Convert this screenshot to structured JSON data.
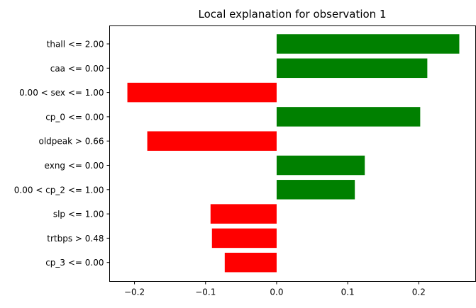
{
  "chart_data": {
    "type": "bar",
    "orientation": "horizontal",
    "title": "Local explanation for observation 1",
    "xlabel": "",
    "ylabel": "",
    "xlim": [
      -0.235,
      0.28
    ],
    "xticks": [
      -0.2,
      -0.1,
      0.0,
      0.1,
      0.2
    ],
    "xtick_labels": [
      "−0.2",
      "−0.1",
      "0.0",
      "0.1",
      "0.2"
    ],
    "categories": [
      "thall <= 2.00",
      "caa <= 0.00",
      "0.00 < sex <= 1.00",
      "cp_0 <= 0.00",
      "oldpeak > 0.66",
      "exng <= 0.00",
      "0.00 < cp_2 <= 1.00",
      "slp <= 1.00",
      "trtbps > 0.48",
      "cp_3 <= 0.00"
    ],
    "values": [
      0.257,
      0.212,
      -0.21,
      0.202,
      -0.182,
      0.124,
      0.11,
      -0.093,
      -0.091,
      -0.073
    ],
    "colors": {
      "positive": "#008000",
      "negative": "#ff0000"
    },
    "grid": false,
    "legend": "none"
  }
}
